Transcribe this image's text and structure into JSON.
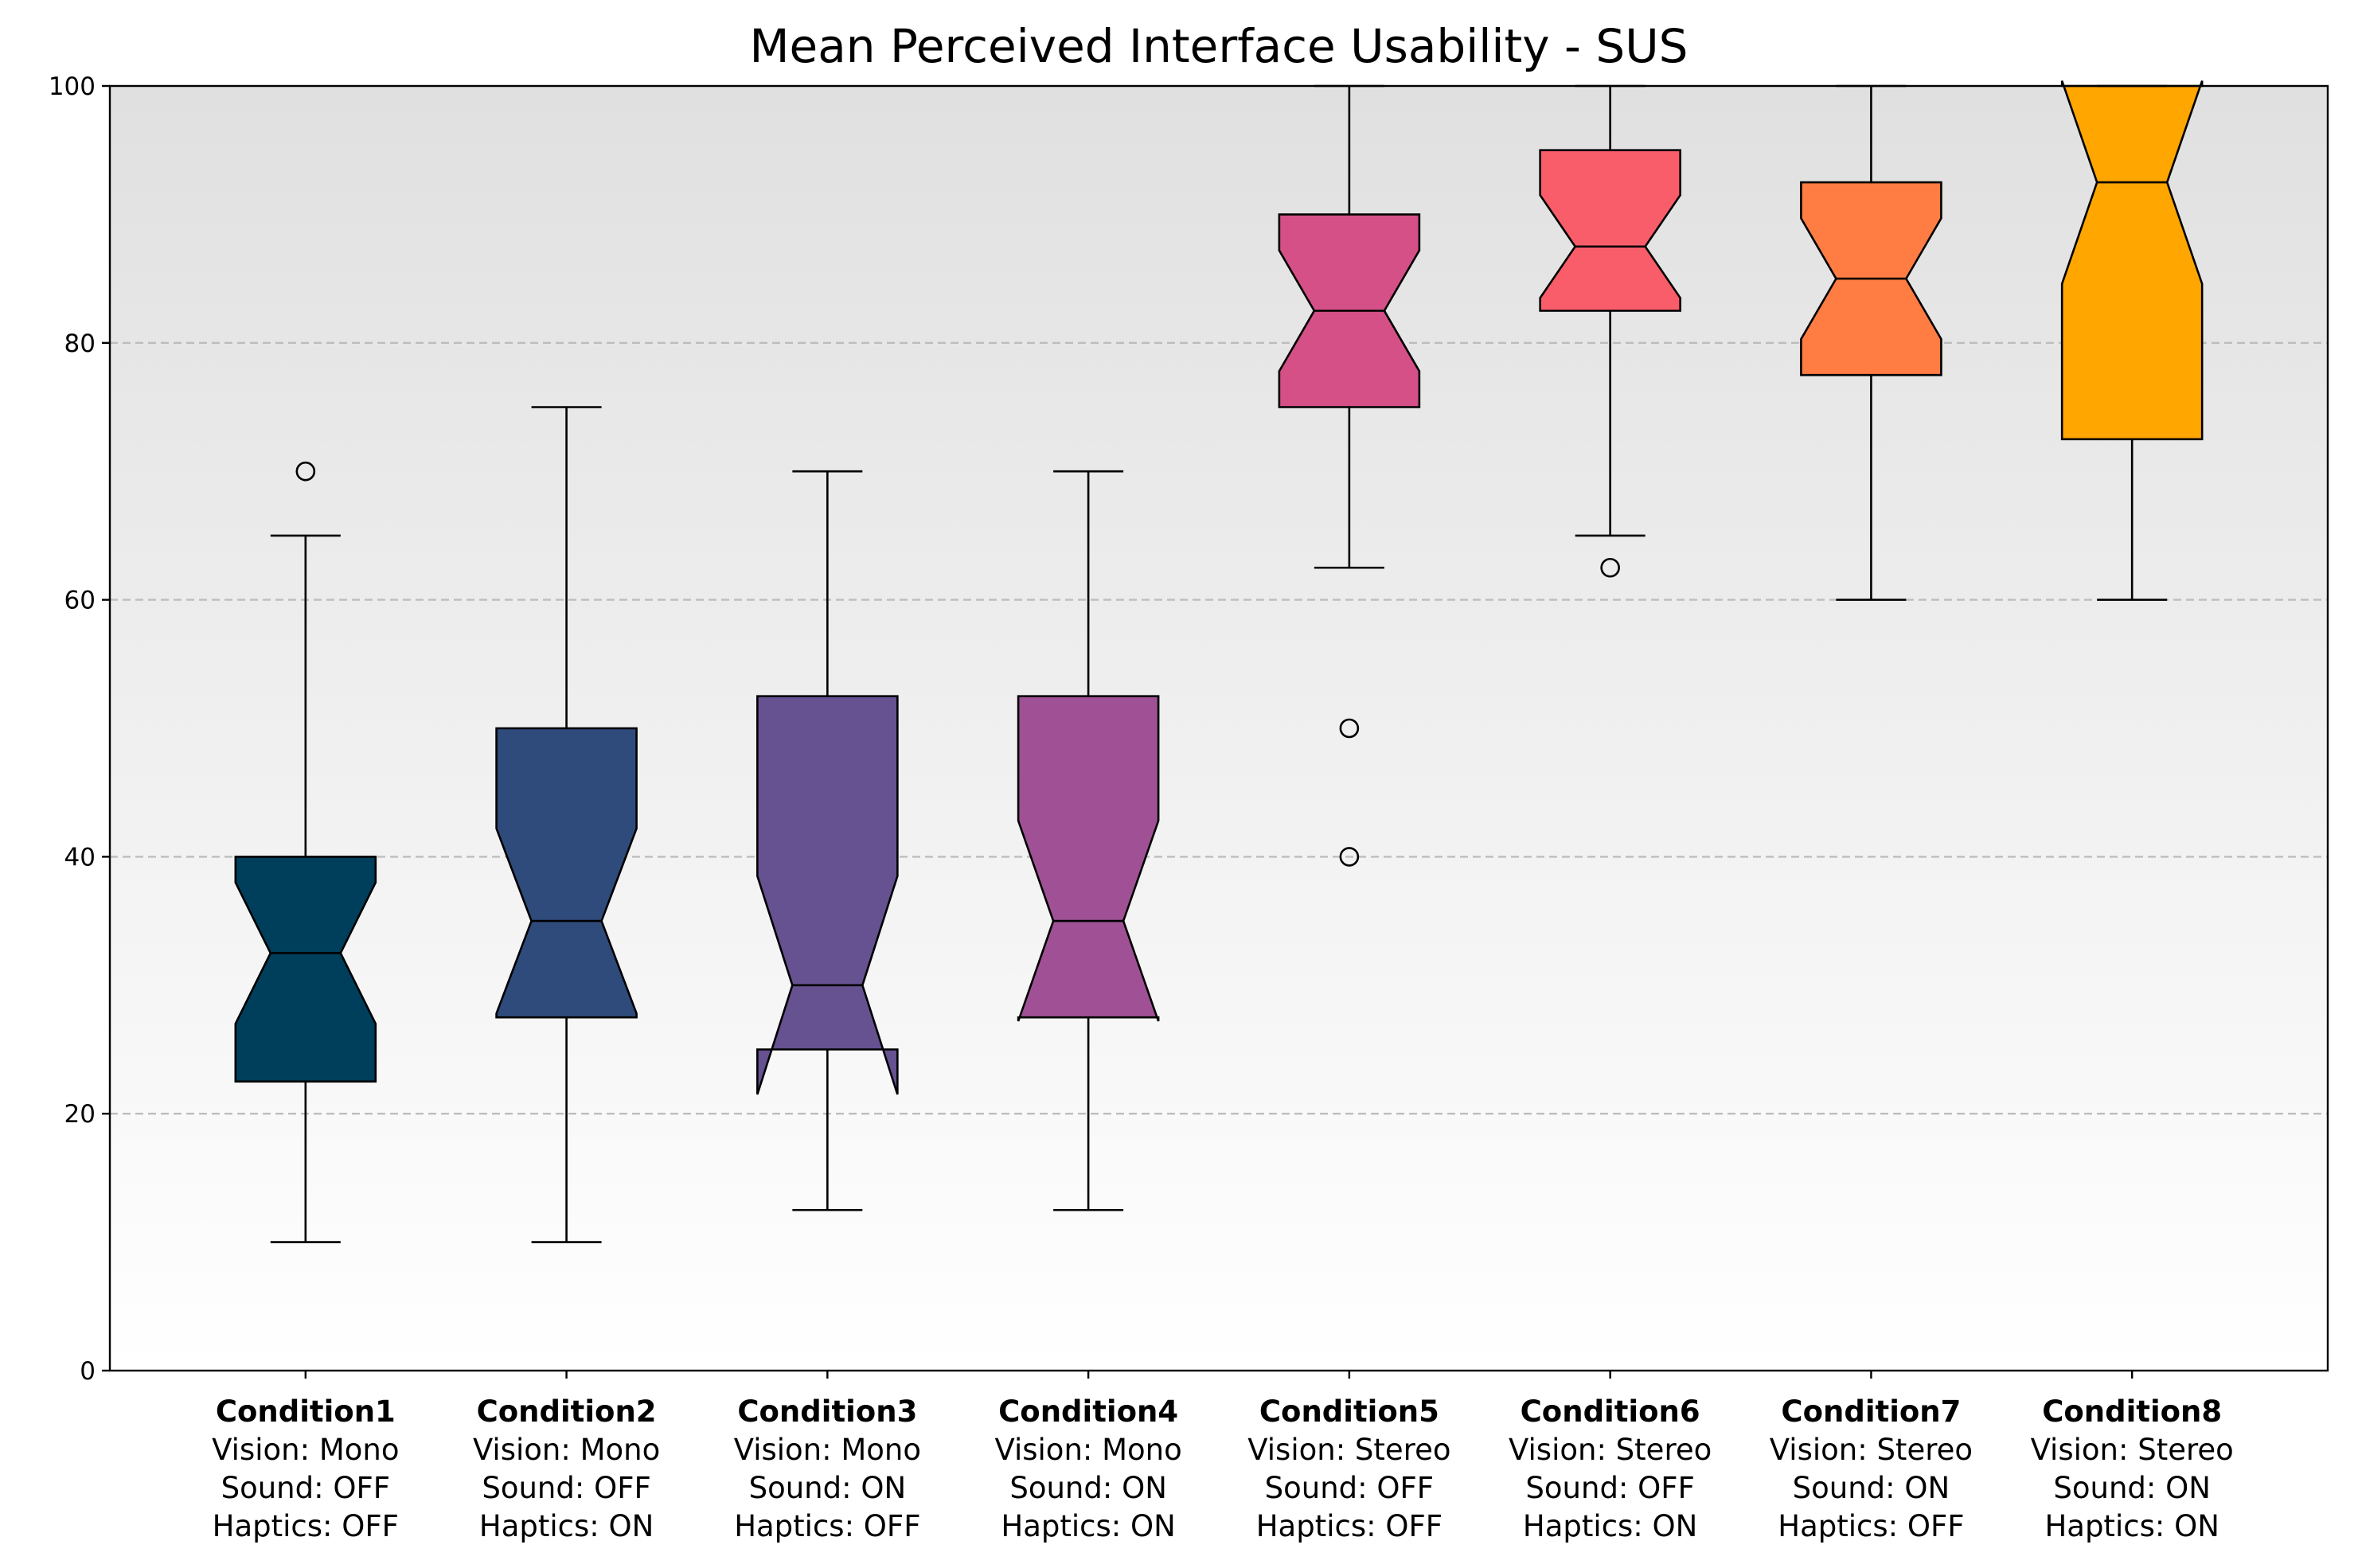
{
  "chart_data": {
    "type": "boxplot",
    "title": "Mean Perceived Interface Usability - SUS",
    "xlabel": "",
    "ylabel": "",
    "ylim": [
      0,
      100
    ],
    "yticks": [
      0,
      20,
      40,
      60,
      80,
      100
    ],
    "grid": "horizontal dashed at 20, 40, 60, 80",
    "background": "vertical gradient, light grey at top to white at bottom",
    "notched": true,
    "categories": [
      {
        "name": "Condition1",
        "vision": "Vision: Mono",
        "sound": "Sound: OFF",
        "haptics": "Haptics: OFF",
        "color": "#003f5c",
        "whisker_low": 10,
        "q1": 22.5,
        "median": 32.5,
        "q3": 40,
        "whisker_high": 65,
        "notch_low": 27,
        "notch_high": 38,
        "outliers": [
          70
        ]
      },
      {
        "name": "Condition2",
        "vision": "Vision: Mono",
        "sound": "Sound: OFF",
        "haptics": "Haptics: ON",
        "color": "#2f4b7c",
        "whisker_low": 10,
        "q1": 27.5,
        "median": 35,
        "q3": 50,
        "whisker_high": 75,
        "notch_low": 27.8,
        "notch_high": 42.2,
        "outliers": []
      },
      {
        "name": "Condition3",
        "vision": "Vision: Mono",
        "sound": "Sound: ON",
        "haptics": "Haptics: OFF",
        "color": "#665191",
        "whisker_low": 12.5,
        "q1": 25,
        "median": 30,
        "q3": 52.5,
        "whisker_high": 70,
        "notch_low": 21.5,
        "notch_high": 38.5,
        "outliers": []
      },
      {
        "name": "Condition4",
        "vision": "Vision: Mono",
        "sound": "Sound: ON",
        "haptics": "Haptics: ON",
        "color": "#a05195",
        "whisker_low": 12.5,
        "q1": 27.5,
        "median": 35,
        "q3": 52.5,
        "whisker_high": 70,
        "notch_low": 27.2,
        "notch_high": 42.8,
        "outliers": []
      },
      {
        "name": "Condition5",
        "vision": "Vision: Stereo",
        "sound": "Sound: OFF",
        "haptics": "Haptics: OFF",
        "color": "#d45087",
        "whisker_low": 62.5,
        "q1": 75,
        "median": 82.5,
        "q3": 90,
        "whisker_high": 100,
        "notch_low": 77.8,
        "notch_high": 87.2,
        "outliers": [
          50,
          40
        ]
      },
      {
        "name": "Condition6",
        "vision": "Vision: Stereo",
        "sound": "Sound: OFF",
        "haptics": "Haptics: ON",
        "color": "#f95d6a",
        "whisker_low": 65,
        "q1": 82.5,
        "median": 87.5,
        "q3": 95,
        "whisker_high": 100,
        "notch_low": 83.5,
        "notch_high": 91.5,
        "outliers": [
          62.5
        ]
      },
      {
        "name": "Condition7",
        "vision": "Vision: Stereo",
        "sound": "Sound: ON",
        "haptics": "Haptics: OFF",
        "color": "#ff7c43",
        "whisker_low": 60,
        "q1": 77.5,
        "median": 85,
        "q3": 92.5,
        "whisker_high": 100,
        "notch_low": 80.3,
        "notch_high": 89.7,
        "outliers": []
      },
      {
        "name": "Condition8",
        "vision": "Vision: Stereo",
        "sound": "Sound: ON",
        "haptics": "Haptics: ON",
        "color": "#ffa600",
        "whisker_low": 60,
        "q1": 72.5,
        "median": 92.5,
        "q3": 100,
        "whisker_high": 100,
        "notch_low": 84.6,
        "notch_high": 100.4,
        "outliers": []
      }
    ]
  }
}
